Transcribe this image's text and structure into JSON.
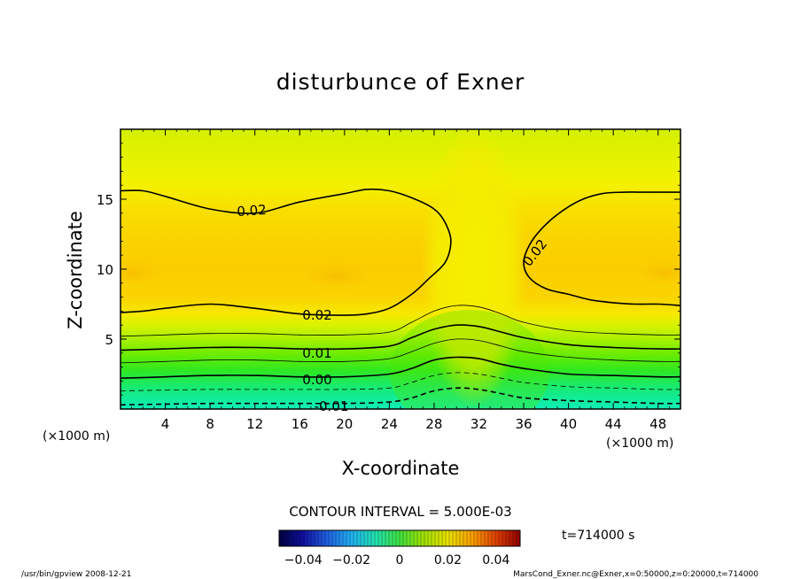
{
  "chart_data": {
    "type": "heatmap",
    "title": "disturbunce of Exner",
    "xlabel": "X-coordinate",
    "ylabel": "Z-coordinate",
    "x_unit": "(×1000 m)",
    "z_unit": "(×1000 m)",
    "xlim": [
      0,
      50
    ],
    "ylim": [
      0,
      20
    ],
    "x_ticks": [
      4,
      8,
      12,
      16,
      20,
      24,
      28,
      32,
      36,
      40,
      44,
      48
    ],
    "y_ticks": [
      5,
      10,
      15
    ],
    "contour_lines": [
      {
        "level": -0.01,
        "style": "dashed",
        "label": "-0.01",
        "x": [
          0,
          4,
          8,
          12,
          16,
          20,
          24,
          26,
          28,
          30,
          32,
          34,
          36,
          40,
          44,
          48,
          50
        ],
        "y": [
          0.3,
          0.35,
          0.4,
          0.4,
          0.4,
          0.4,
          0.5,
          0.8,
          1.3,
          1.5,
          1.4,
          1.1,
          0.8,
          0.6,
          0.5,
          0.4,
          0.4
        ]
      },
      {
        "level": -0.005,
        "style": "dashed",
        "label": "",
        "x": [
          0,
          4,
          8,
          12,
          16,
          20,
          24,
          26,
          28,
          30,
          32,
          34,
          36,
          40,
          44,
          48,
          50
        ],
        "y": [
          1.3,
          1.35,
          1.4,
          1.4,
          1.4,
          1.4,
          1.5,
          1.9,
          2.4,
          2.6,
          2.5,
          2.2,
          1.9,
          1.6,
          1.5,
          1.4,
          1.4
        ]
      },
      {
        "level": 0.0,
        "style": "solid",
        "label": "0.00",
        "x": [
          0,
          4,
          8,
          12,
          16,
          20,
          24,
          26,
          28,
          30,
          32,
          34,
          36,
          40,
          44,
          48,
          50
        ],
        "y": [
          2.2,
          2.3,
          2.4,
          2.4,
          2.3,
          2.3,
          2.5,
          2.9,
          3.5,
          3.7,
          3.6,
          3.2,
          2.9,
          2.5,
          2.4,
          2.3,
          2.3
        ]
      },
      {
        "level": 0.005,
        "style": "solid",
        "label": "",
        "x": [
          0,
          4,
          8,
          12,
          16,
          20,
          24,
          26,
          28,
          30,
          32,
          34,
          36,
          40,
          44,
          48,
          50
        ],
        "y": [
          3.3,
          3.4,
          3.5,
          3.5,
          3.4,
          3.4,
          3.6,
          4.1,
          4.7,
          5.0,
          4.9,
          4.5,
          4.1,
          3.7,
          3.5,
          3.4,
          3.4
        ]
      },
      {
        "level": 0.01,
        "style": "solid",
        "label": "0.01",
        "x": [
          0,
          4,
          8,
          12,
          16,
          20,
          24,
          26,
          28,
          30,
          32,
          34,
          36,
          40,
          44,
          48,
          50
        ],
        "y": [
          4.2,
          4.3,
          4.4,
          4.4,
          4.3,
          4.3,
          4.5,
          5.1,
          5.7,
          6.0,
          5.9,
          5.5,
          5.1,
          4.6,
          4.4,
          4.3,
          4.3
        ]
      },
      {
        "level": 0.015,
        "style": "solid",
        "label": "",
        "x": [
          0,
          4,
          8,
          12,
          16,
          20,
          24,
          26,
          28,
          30,
          32,
          34,
          36,
          40,
          44,
          48,
          50
        ],
        "y": [
          5.2,
          5.3,
          5.4,
          5.4,
          5.3,
          5.3,
          5.5,
          6.2,
          7.0,
          7.4,
          7.3,
          6.8,
          6.2,
          5.6,
          5.4,
          5.3,
          5.3
        ]
      },
      {
        "level": 0.02,
        "style": "solid",
        "label": "0.02",
        "x": [
          0,
          2,
          4,
          8,
          12,
          16,
          20,
          22,
          24,
          26,
          27.5,
          29,
          29.5,
          29,
          28,
          26,
          24,
          22,
          20,
          16,
          12,
          8,
          4,
          2,
          0
        ],
        "y": [
          6.9,
          7.0,
          7.2,
          7.5,
          7.2,
          6.8,
          6.7,
          6.8,
          7.2,
          8.2,
          9.3,
          10.5,
          12.0,
          13.3,
          14.3,
          15.1,
          15.6,
          15.7,
          15.4,
          14.8,
          14.0,
          14.3,
          15.2,
          15.6,
          15.6
        ]
      },
      {
        "level": 0.02,
        "style": "solid",
        "label": "0.02",
        "x": [
          50,
          48,
          46,
          44,
          42,
          40,
          38,
          36.5,
          36,
          36.5,
          37.5,
          39,
          41,
          43,
          45,
          47,
          50
        ],
        "y": [
          7.4,
          7.5,
          7.5,
          7.6,
          7.8,
          8.2,
          8.6,
          9.4,
          10.5,
          11.7,
          12.8,
          13.9,
          14.9,
          15.4,
          15.5,
          15.5,
          15.5
        ]
      }
    ]
  },
  "colorbar": {
    "min": -0.05,
    "max": 0.05,
    "tick_values": [
      -0.04,
      -0.02,
      0,
      0.02,
      0.04
    ],
    "tick_labels": [
      "−0.04",
      "−0.02",
      "0",
      "0.02",
      "0.04"
    ]
  },
  "labels": {
    "contour_interval": "CONTOUR INTERVAL = 5.000E-03",
    "time": "t=714000 s",
    "footer_left": "/usr/bin/gpview  2008-12-21",
    "footer_right": "MarsCond_Exner.nc@Exner,x=0:50000,z=0:20000,t=714000"
  }
}
